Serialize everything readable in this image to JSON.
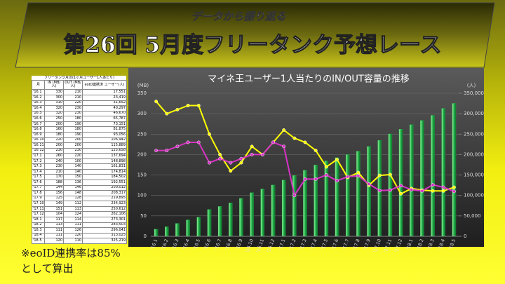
{
  "header": {
    "subtitle": "データから振り返る",
    "title": "第26回 5月度フリータンク予想レース"
  },
  "table": {
    "title": "フリータンク月次(1ヶ月ユーザー1人あたり)",
    "columns": [
      "月",
      "IN (MB/人)",
      "OUT (MB/人)",
      "eoID連携済 ユーザー(人)"
    ],
    "rows": [
      [
        "'16.1",
        330,
        210,
        "17,551"
      ],
      [
        "'16.2",
        300,
        210,
        "23,419"
      ],
      [
        "'16.3",
        310,
        220,
        "31,652"
      ],
      [
        "'16.4",
        320,
        230,
        "40,297"
      ],
      [
        "'16.5",
        320,
        230,
        "46,670"
      ],
      [
        "'16.6",
        250,
        180,
        "65,787"
      ],
      [
        "'16.7",
        200,
        190,
        "73,151"
      ],
      [
        "'16.8",
        160,
        180,
        "81,875"
      ],
      [
        "'16.9",
        180,
        190,
        "93,056"
      ],
      [
        "'16.10",
        220,
        200,
        "106,942"
      ],
      [
        "'16.11",
        200,
        200,
        "115,889"
      ],
      [
        "'16.12",
        230,
        230,
        "125,658"
      ],
      [
        "'17.1",
        260,
        220,
        "137,694"
      ],
      [
        "'17.2",
        240,
        100,
        "148,898"
      ],
      [
        "'17.3",
        230,
        140,
        "161,831"
      ],
      [
        "'17.4",
        210,
        140,
        "174,814"
      ],
      [
        "'17.5",
        170,
        150,
        "184,502"
      ],
      [
        "'17.6",
        188,
        136,
        "192,551"
      ],
      [
        "'17.7",
        144,
        146,
        "200,012"
      ],
      [
        "'17.8",
        156,
        148,
        "208,317"
      ],
      [
        "'17.9",
        125,
        128,
        "219,895"
      ],
      [
        "'17.10",
        149,
        112,
        "234,923"
      ],
      [
        "'17.11",
        151,
        113,
        "250,612"
      ],
      [
        "'17.12",
        104,
        124,
        "262,106"
      ],
      [
        "'18.1",
        117,
        114,
        "273,301"
      ],
      [
        "'18.2",
        113,
        111,
        "283,503"
      ],
      [
        "'18.3",
        111,
        126,
        "296,041"
      ],
      [
        "'18.4",
        111,
        120,
        "313,025"
      ],
      [
        "'18.5",
        120,
        110,
        "325,219"
      ]
    ]
  },
  "note": [
    "※eoID連携率は85%",
    "として算出"
  ],
  "chart_data": {
    "type": "bar",
    "title": "マイネ王ユーザー1人当たりのIN/OUT容量の推移",
    "ylabel": "(MB)",
    "y2label": "(人)",
    "categories": [
      "'16.1",
      "'16.2",
      "'16.3",
      "'16.4",
      "'16.5",
      "'16.6",
      "'16.7",
      "'16.8",
      "'16.9",
      "'16.10",
      "'16.11",
      "'16.12",
      "'17.1",
      "'17.2",
      "'17.3",
      "'17.4",
      "'17.5",
      "'17.6",
      "'17.7",
      "'17.8",
      "'17.9",
      "'17.10",
      "'17.11",
      "'17.12",
      "'18.1",
      "'18.2",
      "'18.3",
      "'18.4",
      "'18.5"
    ],
    "series": [
      {
        "type": "bar",
        "axis": "y2",
        "color": "#22b14c",
        "values": [
          17551,
          23419,
          31652,
          40297,
          46670,
          65787,
          73151,
          81875,
          93056,
          106942,
          115889,
          125658,
          137694,
          148898,
          161831,
          174814,
          184502,
          192551,
          200012,
          208317,
          219895,
          234923,
          250612,
          262106,
          273301,
          283503,
          296041,
          313025,
          325219
        ]
      },
      {
        "type": "line",
        "color": "#ffff00",
        "values": [
          330,
          300,
          310,
          320,
          320,
          250,
          200,
          160,
          180,
          220,
          200,
          230,
          260,
          240,
          230,
          210,
          170,
          188,
          144,
          156,
          125,
          149,
          151,
          104,
          117,
          113,
          111,
          111,
          120
        ]
      },
      {
        "type": "line",
        "color": "#d633c4",
        "values": [
          210,
          210,
          220,
          230,
          230,
          180,
          190,
          180,
          190,
          200,
          200,
          230,
          220,
          100,
          140,
          140,
          150,
          136,
          146,
          148,
          128,
          112,
          113,
          124,
          114,
          111,
          126,
          120,
          110
        ]
      }
    ],
    "ylim": [
      0,
      350
    ],
    "yticks": [
      0,
      50,
      100,
      150,
      200,
      250,
      300,
      350
    ],
    "y2lim": [
      0,
      350000
    ],
    "y2ticks": [
      0,
      {
        "value": 50000,
        "label": "50,000"
      },
      {
        "value": 100000,
        "label": "100,000"
      },
      {
        "value": 150000,
        "label": "150,000"
      },
      {
        "value": 200000,
        "label": "200,000"
      },
      {
        "value": 250000,
        "label": "250,000"
      },
      {
        "value": 300000,
        "label": "300,000"
      },
      {
        "value": 350000,
        "label": "350,000"
      }
    ],
    "grid": true
  }
}
